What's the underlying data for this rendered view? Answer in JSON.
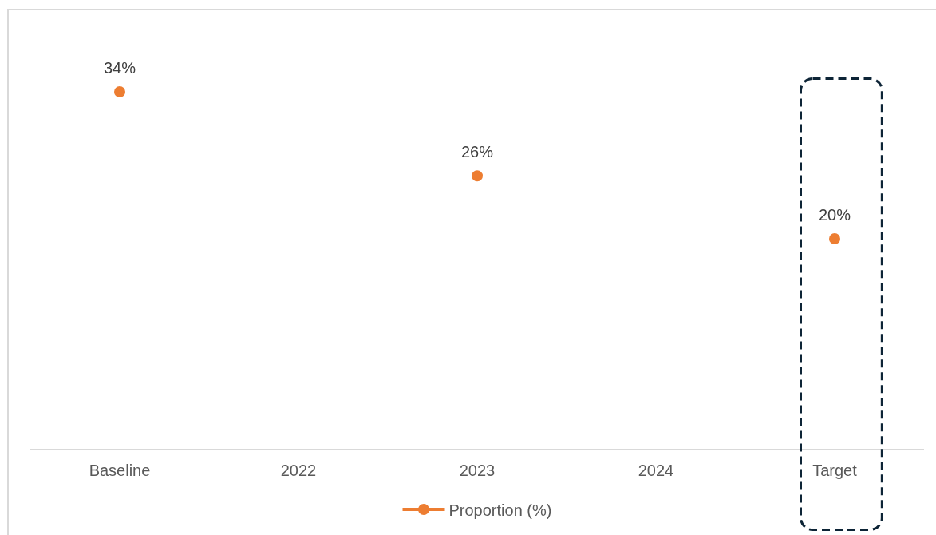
{
  "chart_data": {
    "type": "scatter",
    "categories": [
      "Baseline",
      "2022",
      "2023",
      "2024",
      "Target"
    ],
    "series": [
      {
        "name": "Proportion (%)",
        "color": "#ed7d31",
        "values": [
          34,
          null,
          26,
          null,
          20
        ],
        "value_labels": [
          "34%",
          null,
          "26%",
          null,
          "20%"
        ]
      }
    ],
    "marker": "circle",
    "line_style": "solid",
    "legend": "bottom",
    "tick_labels": "x"
  }
}
